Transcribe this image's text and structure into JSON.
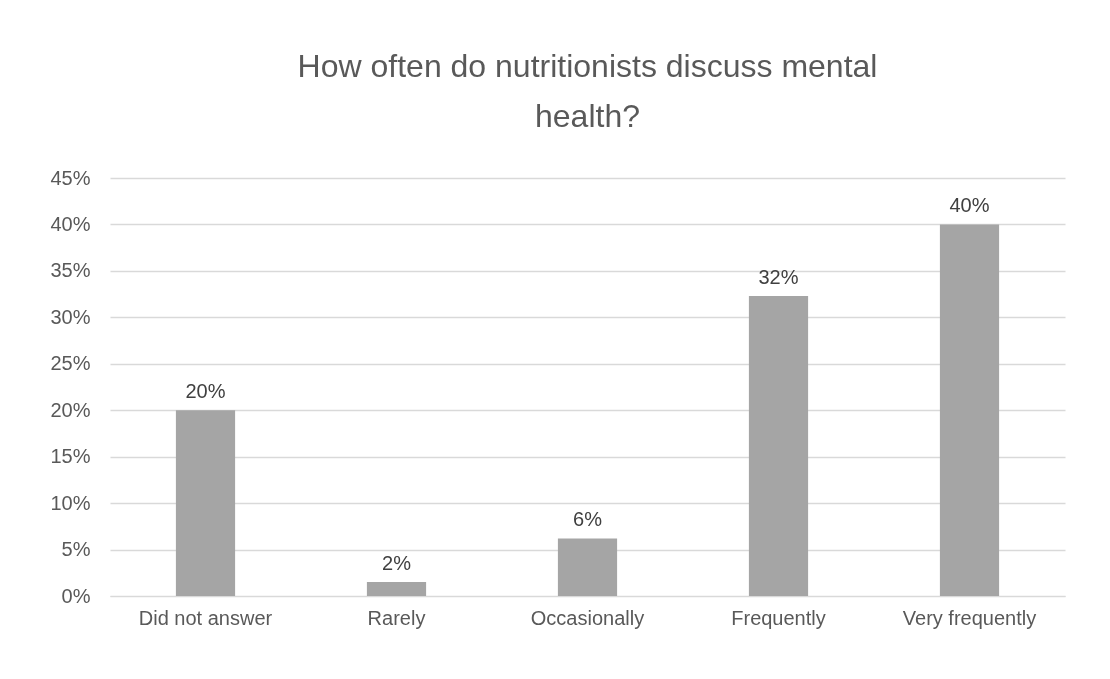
{
  "chart_data": {
    "type": "bar",
    "title": "How often do nutritionists discuss mental health?",
    "categories": [
      "Did not answer",
      "Rarely",
      "Occasionally",
      "Frequently",
      "Very frequently"
    ],
    "values": [
      20,
      1.5,
      6.2,
      32.3,
      40
    ],
    "value_labels": [
      "20%",
      "2%",
      "6%",
      "32%",
      "40%"
    ],
    "color": "#a5a5a5",
    "ylim": [
      0,
      45
    ],
    "yticks": [
      {
        "value": 0,
        "label": "0%"
      },
      {
        "value": 5,
        "label": "5%"
      },
      {
        "value": 10,
        "label": "10%"
      },
      {
        "value": 15,
        "label": "15%"
      },
      {
        "value": 20,
        "label": "20%"
      },
      {
        "value": 25,
        "label": "25%"
      },
      {
        "value": 30,
        "label": "30%"
      },
      {
        "value": 35,
        "label": "35%"
      },
      {
        "value": 40,
        "label": "40%"
      },
      {
        "value": 45,
        "label": "45%"
      }
    ],
    "grid": "y"
  }
}
